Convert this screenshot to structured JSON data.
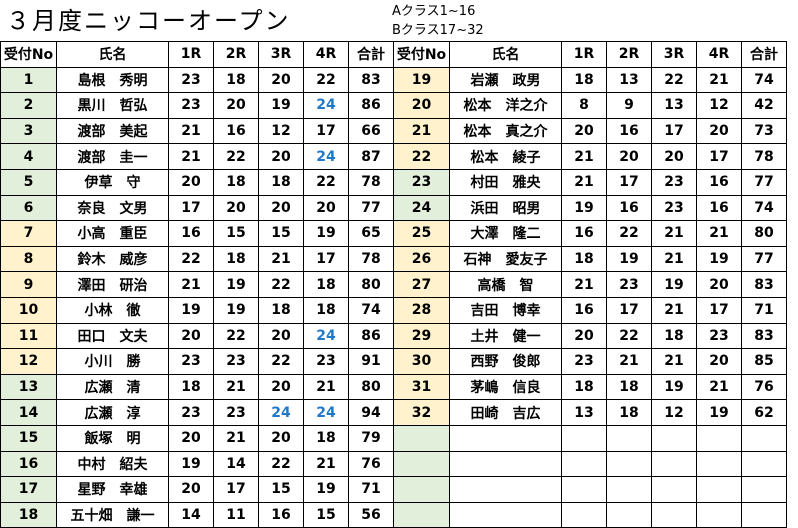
{
  "title": "３月度ニッコーオープン",
  "notes": [
    "Aクラス1~16",
    "Bクラス17~32"
  ],
  "headers": [
    "受付No",
    "氏名",
    "1R",
    "2R",
    "3R",
    "4R",
    "合計"
  ],
  "left": [
    {
      "no": "1",
      "name": "島根　秀明",
      "r1": "23",
      "r2": "18",
      "r3": "20",
      "r4": "22",
      "total": "83"
    },
    {
      "no": "2",
      "name": "黒川　哲弘",
      "r1": "23",
      "r2": "20",
      "r3": "19",
      "r4": "24",
      "total": "86"
    },
    {
      "no": "3",
      "name": "渡部　美起",
      "r1": "21",
      "r2": "16",
      "r3": "12",
      "r4": "17",
      "total": "66"
    },
    {
      "no": "4",
      "name": "渡部　圭一",
      "r1": "21",
      "r2": "22",
      "r3": "20",
      "r4": "24",
      "total": "87"
    },
    {
      "no": "5",
      "name": "伊草　守",
      "r1": "20",
      "r2": "18",
      "r3": "18",
      "r4": "22",
      "total": "78"
    },
    {
      "no": "6",
      "name": "奈良　文男",
      "r1": "17",
      "r2": "20",
      "r3": "20",
      "r4": "20",
      "total": "77"
    },
    {
      "no": "7",
      "name": "小高　重臣",
      "r1": "16",
      "r2": "15",
      "r3": "15",
      "r4": "19",
      "total": "65"
    },
    {
      "no": "8",
      "name": "鈴木　威彦",
      "r1": "22",
      "r2": "18",
      "r3": "21",
      "r4": "17",
      "total": "78"
    },
    {
      "no": "9",
      "name": "澤田　研治",
      "r1": "21",
      "r2": "19",
      "r3": "22",
      "r4": "18",
      "total": "80"
    },
    {
      "no": "10",
      "name": "小林　徹",
      "r1": "19",
      "r2": "19",
      "r3": "18",
      "r4": "18",
      "total": "74"
    },
    {
      "no": "11",
      "name": "田口　文夫",
      "r1": "20",
      "r2": "22",
      "r3": "20",
      "r4": "24",
      "total": "86"
    },
    {
      "no": "12",
      "name": "小川　勝",
      "r1": "23",
      "r2": "23",
      "r3": "22",
      "r4": "23",
      "total": "91"
    },
    {
      "no": "13",
      "name": "広瀬　清",
      "r1": "18",
      "r2": "21",
      "r3": "20",
      "r4": "21",
      "total": "80"
    },
    {
      "no": "14",
      "name": "広瀬　淳",
      "r1": "23",
      "r2": "23",
      "r3": "24",
      "r4": "24",
      "total": "94"
    },
    {
      "no": "15",
      "name": "飯塚　明",
      "r1": "20",
      "r2": "21",
      "r3": "20",
      "r4": "18",
      "total": "79"
    },
    {
      "no": "16",
      "name": "中村　紹夫",
      "r1": "19",
      "r2": "14",
      "r3": "22",
      "r4": "21",
      "total": "76"
    },
    {
      "no": "17",
      "name": "星野　幸雄",
      "r1": "20",
      "r2": "17",
      "r3": "15",
      "r4": "19",
      "total": "71"
    },
    {
      "no": "18",
      "name": "五十畑　謙一",
      "r1": "14",
      "r2": "11",
      "r3": "16",
      "r4": "15",
      "total": "56"
    }
  ],
  "right": [
    {
      "no": "19",
      "name": "岩瀬　政男",
      "r1": "18",
      "r2": "13",
      "r3": "22",
      "r4": "21",
      "total": "74"
    },
    {
      "no": "20",
      "name": "松本　洋之介",
      "r1": "8",
      "r2": "9",
      "r3": "13",
      "r4": "12",
      "total": "42"
    },
    {
      "no": "21",
      "name": "松本　真之介",
      "r1": "20",
      "r2": "16",
      "r3": "17",
      "r4": "20",
      "total": "73"
    },
    {
      "no": "22",
      "name": "松本　綾子",
      "r1": "21",
      "r2": "20",
      "r3": "20",
      "r4": "17",
      "total": "78"
    },
    {
      "no": "23",
      "name": "村田　雅央",
      "r1": "21",
      "r2": "17",
      "r3": "23",
      "r4": "16",
      "total": "77"
    },
    {
      "no": "24",
      "name": "浜田　昭男",
      "r1": "19",
      "r2": "16",
      "r3": "23",
      "r4": "16",
      "total": "74"
    },
    {
      "no": "25",
      "name": "大澤　隆二",
      "r1": "16",
      "r2": "22",
      "r3": "21",
      "r4": "21",
      "total": "80"
    },
    {
      "no": "26",
      "name": "石神　愛友子",
      "r1": "18",
      "r2": "19",
      "r3": "21",
      "r4": "19",
      "total": "77"
    },
    {
      "no": "27",
      "name": "高橋　智",
      "r1": "21",
      "r2": "23",
      "r3": "19",
      "r4": "20",
      "total": "83"
    },
    {
      "no": "28",
      "name": "吉田　博幸",
      "r1": "16",
      "r2": "17",
      "r3": "21",
      "r4": "17",
      "total": "71"
    },
    {
      "no": "29",
      "name": "土井　健一",
      "r1": "20",
      "r2": "22",
      "r3": "18",
      "r4": "23",
      "total": "83"
    },
    {
      "no": "30",
      "name": "西野　俊郎",
      "r1": "23",
      "r2": "21",
      "r3": "21",
      "r4": "20",
      "total": "85"
    },
    {
      "no": "31",
      "name": "茅嶋　信良",
      "r1": "18",
      "r2": "18",
      "r3": "19",
      "r4": "21",
      "total": "76"
    },
    {
      "no": "32",
      "name": "田崎　吉広",
      "r1": "13",
      "r2": "18",
      "r3": "12",
      "r4": "19",
      "total": "62"
    }
  ],
  "highlight_color": "#1f78c8",
  "highlight_value": "24",
  "colors": {
    "green": "#e2efda",
    "yellow": "#fff2cc"
  },
  "alt_nos": [
    "7",
    "8",
    "9",
    "10",
    "11",
    "12",
    "19",
    "20",
    "21",
    "22",
    "25",
    "26",
    "27",
    "28",
    "29",
    "30",
    "31",
    "32"
  ]
}
